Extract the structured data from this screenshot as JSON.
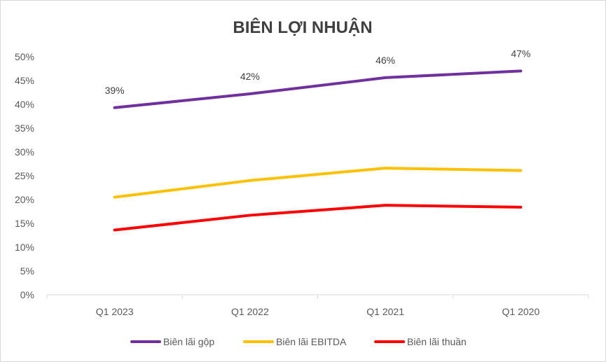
{
  "chart_data": {
    "type": "line",
    "title": "BIÊN LỢI NHUẬN",
    "categories": [
      "Q1 2023",
      "Q1 2022",
      "Q1 2021",
      "Q1 2020"
    ],
    "ylim": [
      0,
      50
    ],
    "yticks": [
      0,
      5,
      10,
      15,
      20,
      25,
      30,
      35,
      40,
      45,
      50
    ],
    "ytick_labels": [
      "0%",
      "5%",
      "10%",
      "15%",
      "20%",
      "25%",
      "30%",
      "35%",
      "40%",
      "45%",
      "50%"
    ],
    "grid": false,
    "legend_position": "bottom",
    "series": [
      {
        "name": "Biên lãi gộp",
        "color": "#7030A0",
        "values": [
          39.3,
          42.2,
          45.6,
          47.0
        ],
        "data_labels": [
          "39%",
          "42%",
          "46%",
          "47%"
        ]
      },
      {
        "name": "Biên lãi EBITDA",
        "color": "#FFC000",
        "values": [
          20.5,
          24.0,
          26.6,
          26.1
        ]
      },
      {
        "name": "Biên lãi thuần",
        "color": "#FF0000",
        "values": [
          13.6,
          16.7,
          18.8,
          18.4
        ]
      }
    ]
  }
}
